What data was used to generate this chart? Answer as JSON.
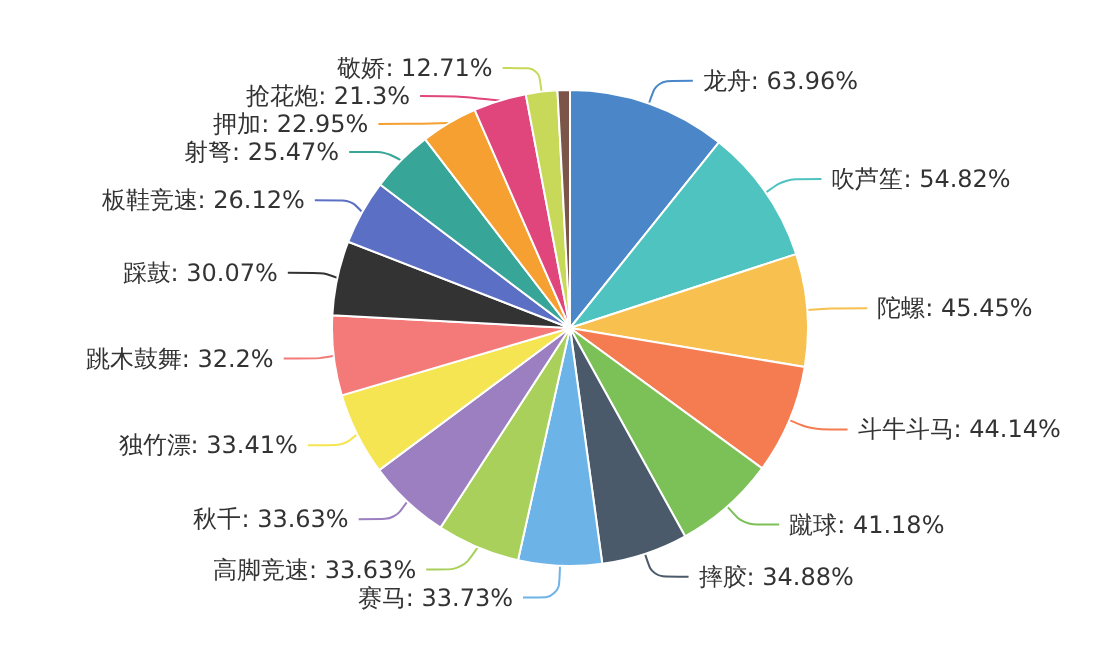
{
  "chart_data": {
    "type": "pie",
    "categories": [
      "龙舟",
      "吹芦笙",
      "陀螺",
      "斗牛斗马",
      "蹴球",
      "摔胶",
      "赛马",
      "高脚竞速",
      "秋千",
      "独竹漂",
      "跳木鼓舞",
      "踩鼓",
      "板鞋竞速",
      "射弩",
      "押加",
      "抢花炮",
      "敬娇",
      null
    ],
    "values": [
      63.96,
      54.82,
      45.45,
      44.14,
      41.18,
      34.88,
      33.73,
      33.63,
      33.63,
      33.41,
      32.2,
      30.07,
      26.12,
      25.47,
      22.95,
      21.3,
      12.71,
      5
    ],
    "value_labels": [
      "63.96%",
      "54.82%",
      "45.45%",
      "44.14%",
      "41.18%",
      "34.88%",
      "33.73%",
      "33.63%",
      "33.63%",
      "33.41%",
      "32.2%",
      "30.07%",
      "26.12%",
      "25.47%",
      "22.95%",
      "21.3%",
      "12.71%",
      null
    ],
    "colors": [
      "#4a86c8",
      "#4fc3c0",
      "#f7c04f",
      "#f47c50",
      "#7cc157",
      "#4a5a6a",
      "#6cb4e8",
      "#a8d05a",
      "#9b7fc0",
      "#f5e552",
      "#f47a7a",
      "#333333",
      "#5b6fc4",
      "#37a597",
      "#f5a030",
      "#e0457b",
      "#c8d95a",
      "#7a5548"
    ],
    "legend": false
  }
}
